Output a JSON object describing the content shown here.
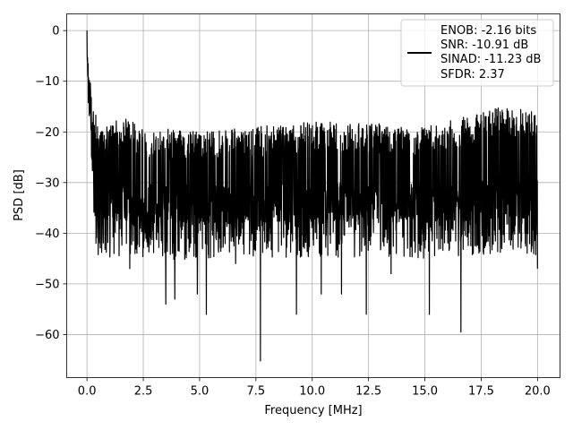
{
  "chart_data": {
    "type": "line",
    "title": "",
    "xlabel": "Frequency [MHz]",
    "ylabel": "PSD [dB]",
    "xlim": [
      -0.9,
      21.0
    ],
    "ylim": [
      -68.5,
      3.3
    ],
    "xticks": [
      0.0,
      2.5,
      5.0,
      7.5,
      10.0,
      12.5,
      15.0,
      17.5,
      20.0
    ],
    "xtick_labels": [
      "0.0",
      "2.5",
      "5.0",
      "7.5",
      "10.0",
      "12.5",
      "15.0",
      "17.5",
      "20.0"
    ],
    "yticks": [
      0,
      -10,
      -20,
      -30,
      -40,
      -50,
      -60
    ],
    "ytick_labels": [
      "0",
      "−10",
      "−20",
      "−30",
      "−40",
      "−50",
      "−60"
    ],
    "grid": true,
    "legend_position": "top-right",
    "series": [
      {
        "color": "#000000",
        "x_start": 0.0,
        "x_end": 20.0,
        "peak": {
          "x": 0.0,
          "y": 0.0
        },
        "min": {
          "x": 7.7,
          "y": -65.2
        },
        "envelope_upper": [
          {
            "x": 0.0,
            "y": 0.0
          },
          {
            "x": 0.1,
            "y": -8
          },
          {
            "x": 0.3,
            "y": -15
          },
          {
            "x": 0.6,
            "y": -19
          },
          {
            "x": 1.0,
            "y": -19
          },
          {
            "x": 1.5,
            "y": -17
          },
          {
            "x": 2.5,
            "y": -19
          },
          {
            "x": 5.0,
            "y": -20
          },
          {
            "x": 7.5,
            "y": -19
          },
          {
            "x": 10.0,
            "y": -18
          },
          {
            "x": 12.5,
            "y": -18
          },
          {
            "x": 15.0,
            "y": -19
          },
          {
            "x": 17.5,
            "y": -16
          },
          {
            "x": 18.5,
            "y": -15
          },
          {
            "x": 20.0,
            "y": -16
          }
        ],
        "baseline_level": -30,
        "deep_dips": [
          {
            "x": 0.4,
            "y": -42
          },
          {
            "x": 1.2,
            "y": -44
          },
          {
            "x": 1.9,
            "y": -47
          },
          {
            "x": 3.5,
            "y": -54
          },
          {
            "x": 3.9,
            "y": -53
          },
          {
            "x": 4.9,
            "y": -52
          },
          {
            "x": 5.3,
            "y": -56
          },
          {
            "x": 6.6,
            "y": -46
          },
          {
            "x": 7.7,
            "y": -65.2
          },
          {
            "x": 9.3,
            "y": -56
          },
          {
            "x": 10.4,
            "y": -52
          },
          {
            "x": 11.3,
            "y": -52
          },
          {
            "x": 12.4,
            "y": -56
          },
          {
            "x": 13.5,
            "y": -48
          },
          {
            "x": 15.2,
            "y": -56
          },
          {
            "x": 16.6,
            "y": -59.5
          },
          {
            "x": 17.9,
            "y": -44
          },
          {
            "x": 19.2,
            "y": -40
          },
          {
            "x": 20.0,
            "y": -47
          }
        ]
      }
    ],
    "legend": {
      "lines": [
        "ENOB: -2.16 bits",
        "SNR: -10.91 dB",
        "SINAD: -11.23 dB",
        "SFDR: 2.37"
      ]
    }
  }
}
